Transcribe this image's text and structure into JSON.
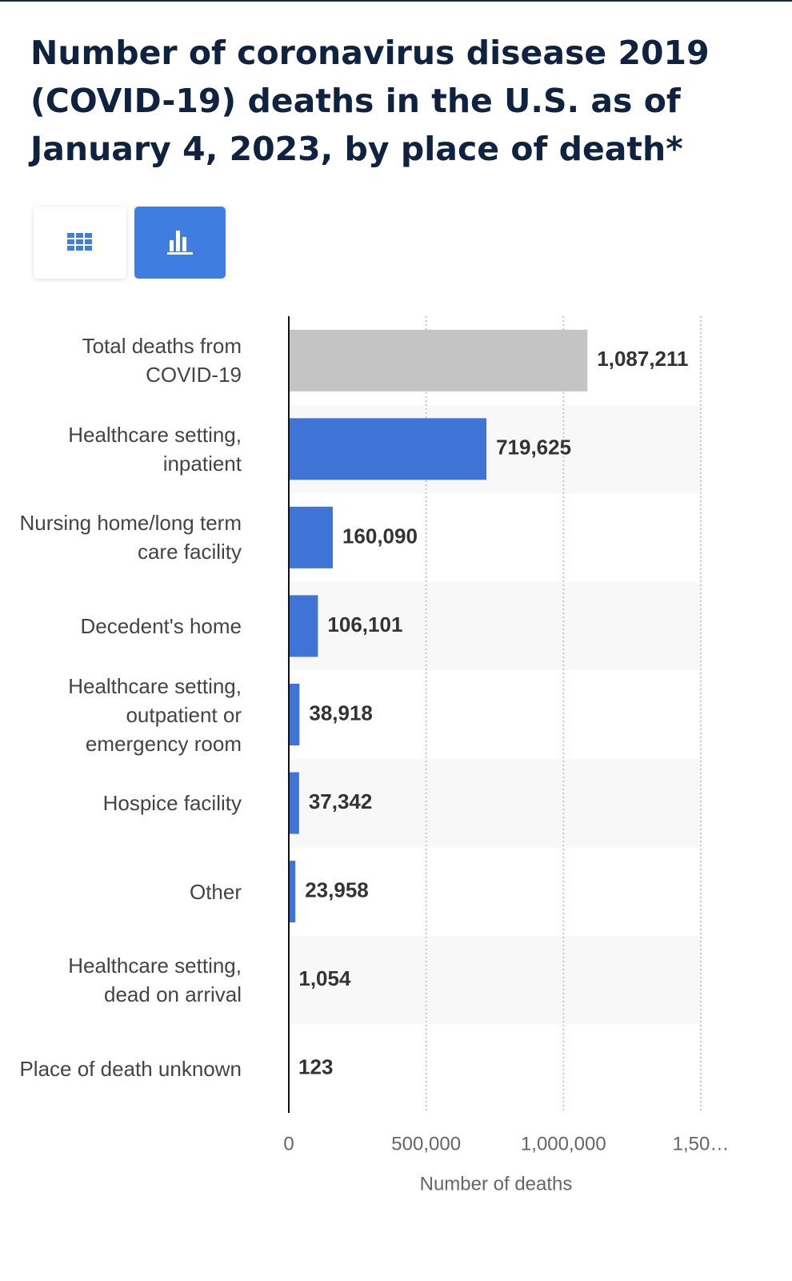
{
  "chart_data": {
    "type": "bar",
    "orientation": "horizontal",
    "title": "Number of coronavirus disease 2019 (COVID-19) deaths in the U.S. as of January 4, 2023, by place of death*",
    "categories": [
      "Total deaths from COVID-19",
      "Healthcare setting, inpatient",
      "Nursing home/long term care facility",
      "Decedent's home",
      "Healthcare setting, outpatient or emergency room",
      "Hospice facility",
      "Other",
      "Healthcare setting, dead on arrival",
      "Place of death unknown"
    ],
    "values": [
      1087211,
      719625,
      160090,
      106101,
      38918,
      37342,
      23958,
      1054,
      123
    ],
    "value_labels": [
      "1,087,211",
      "719,625",
      "160,090",
      "106,101",
      "38,918",
      "37,342",
      "23,958",
      "1,054",
      "123"
    ],
    "colors": [
      "#c4c4c4",
      "#3f74d6",
      "#3f74d6",
      "#3f74d6",
      "#3f74d6",
      "#3f74d6",
      "#3f74d6",
      "#3f74d6",
      "#3f74d6"
    ],
    "xlabel": "Number of deaths",
    "xlim": [
      0,
      1500000
    ],
    "xticks": [
      0,
      {
        "value": 500000,
        "label": "500,000"
      },
      {
        "value": 1000000,
        "label": "1,000,000"
      },
      {
        "value": 1500000,
        "label": "1,50…"
      }
    ],
    "grid": true
  }
}
